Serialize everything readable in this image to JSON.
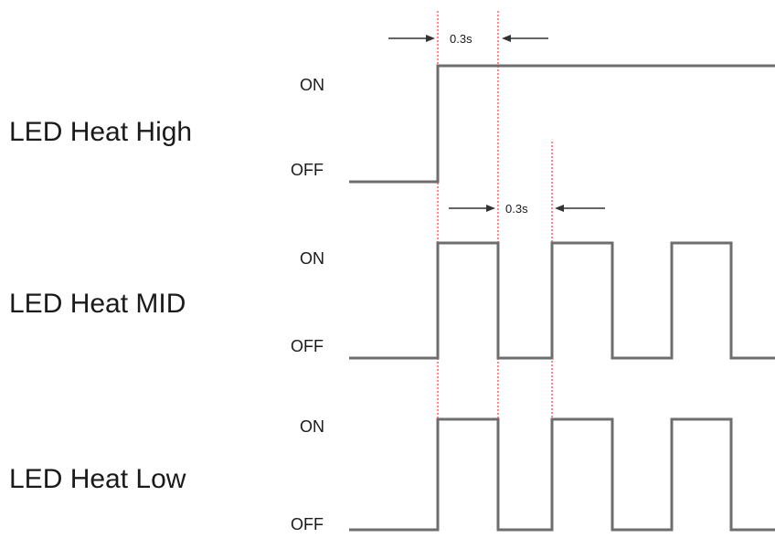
{
  "rows": [
    {
      "label": "LED Heat High",
      "on_label": "ON",
      "off_label": "OFF"
    },
    {
      "label": "LED Heat MID",
      "on_label": "ON",
      "off_label": "OFF"
    },
    {
      "label": "LED Heat Low",
      "on_label": "ON",
      "off_label": "OFF"
    }
  ],
  "dimensions": [
    {
      "label": "0.3s"
    },
    {
      "label": "0.3s"
    }
  ],
  "colors": {
    "signal": "#6e6e6e",
    "marker": "#ff6b6b",
    "text": "#1a1a1a"
  }
}
